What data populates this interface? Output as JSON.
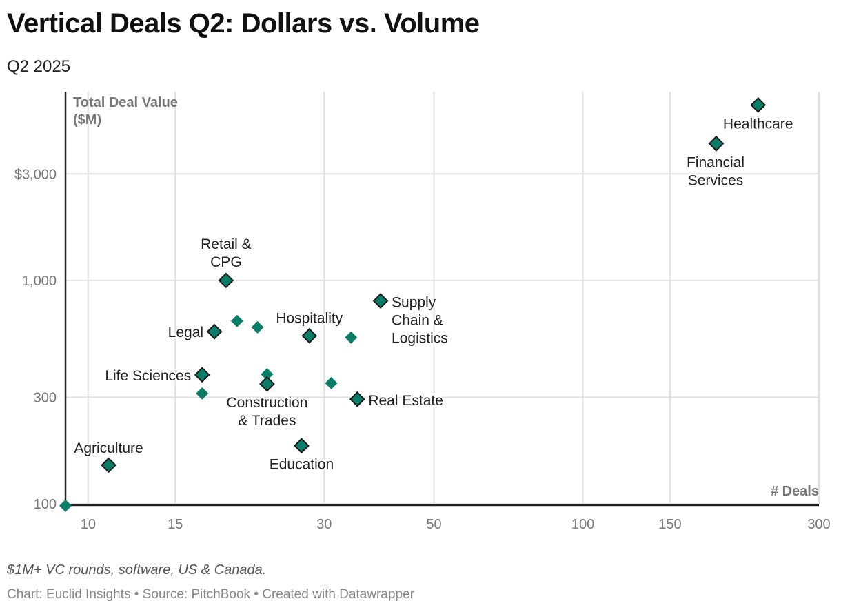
{
  "header": {
    "title": "Vertical Deals Q2: Dollars vs. Volume",
    "subtitle": "Q2 2025"
  },
  "footer": {
    "note": "$1M+ VC rounds, software, US & Canada.",
    "credit": "Chart: Euclid Insights • Source: PitchBook • Created with Datawrapper"
  },
  "colors": {
    "point": "#0a7d68",
    "outline": "#1a1a1a",
    "grid": "#e2e2e2"
  },
  "chart_data": {
    "type": "scatter",
    "xlabel": "# Deals",
    "ylabel": [
      "Total Deal Value",
      "($M)"
    ],
    "xscale": "log",
    "yscale": "log",
    "xlim": [
      9,
      300
    ],
    "ylim": [
      100,
      7000
    ],
    "xticks": [
      {
        "v": 10,
        "label": "10"
      },
      {
        "v": 15,
        "label": "15"
      },
      {
        "v": 30,
        "label": "30"
      },
      {
        "v": 50,
        "label": "50"
      },
      {
        "v": 100,
        "label": "100"
      },
      {
        "v": 150,
        "label": "150"
      },
      {
        "v": 300,
        "label": "300"
      }
    ],
    "yticks": [
      {
        "v": 100,
        "label": "100"
      },
      {
        "v": 300,
        "label": "300"
      },
      {
        "v": 1000,
        "label": "1,000"
      },
      {
        "v": 3000,
        "label": "$3,000"
      }
    ],
    "grid": true,
    "points": [
      {
        "name": "Healthcare",
        "label": [
          "Healthcare"
        ],
        "x": 226,
        "y": 6100,
        "highlight": true,
        "label_pos": "below"
      },
      {
        "name": "Financial Services",
        "label": [
          "Financial",
          "Services"
        ],
        "x": 186,
        "y": 4100,
        "highlight": true,
        "label_pos": "below"
      },
      {
        "name": "Retail & CPG",
        "label": [
          "Retail &",
          "CPG"
        ],
        "x": 19,
        "y": 1000,
        "highlight": true,
        "label_pos": "above"
      },
      {
        "name": "Supply Chain & Logistics",
        "label": [
          "Supply",
          "Chain &",
          "Logistics"
        ],
        "x": 39,
        "y": 810,
        "highlight": true,
        "label_pos": "right"
      },
      {
        "name": "Hospitality",
        "label": [
          "Hospitality"
        ],
        "x": 28,
        "y": 565,
        "highlight": true,
        "label_pos": "above"
      },
      {
        "name": "Legal",
        "label": [
          "Legal"
        ],
        "x": 18,
        "y": 590,
        "highlight": true,
        "label_pos": "left"
      },
      {
        "name": "Life Sciences",
        "label": [
          "Life Sciences"
        ],
        "x": 17,
        "y": 378,
        "highlight": true,
        "label_pos": "left"
      },
      {
        "name": "Construction & Trades",
        "label": [
          "Construction",
          "& Trades"
        ],
        "x": 23,
        "y": 344,
        "highlight": true,
        "label_pos": "below"
      },
      {
        "name": "Real Estate",
        "label": [
          "Real Estate"
        ],
        "x": 35,
        "y": 294,
        "highlight": true,
        "label_pos": "right"
      },
      {
        "name": "Education",
        "label": [
          "Education"
        ],
        "x": 27,
        "y": 182,
        "highlight": true,
        "label_pos": "below"
      },
      {
        "name": "Agriculture",
        "label": [
          "Agriculture"
        ],
        "x": 11,
        "y": 149,
        "highlight": true,
        "label_pos": "above"
      },
      {
        "name": "",
        "x": 20,
        "y": 658,
        "highlight": false
      },
      {
        "name": "",
        "x": 22,
        "y": 617,
        "highlight": false
      },
      {
        "name": "",
        "x": 34,
        "y": 555,
        "highlight": false
      },
      {
        "name": "",
        "x": 23,
        "y": 380,
        "highlight": false
      },
      {
        "name": "",
        "x": 31,
        "y": 347,
        "highlight": false
      },
      {
        "name": "",
        "x": 17,
        "y": 312,
        "highlight": false
      },
      {
        "name": "",
        "x": 9,
        "y": 98,
        "highlight": false
      }
    ]
  }
}
